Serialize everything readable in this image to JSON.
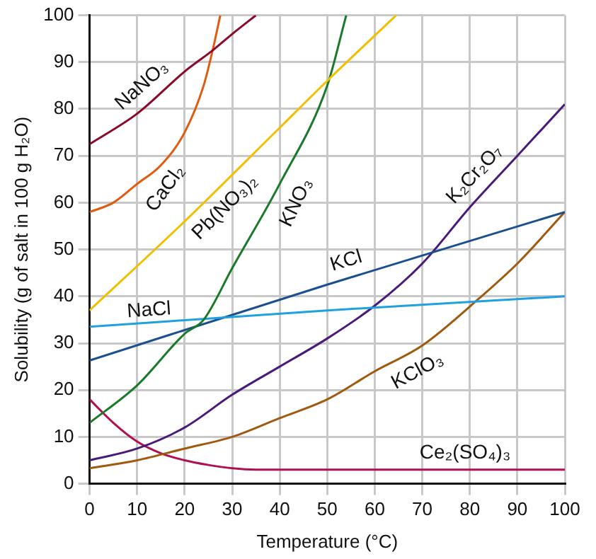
{
  "chart_data": {
    "type": "line",
    "xlabel": "Temperature (°C)",
    "ylabel": "Solubility (g of salt in 100 g H₂O)",
    "xlim": [
      0,
      100
    ],
    "ylim": [
      0,
      100
    ],
    "xticks": [
      0,
      10,
      20,
      30,
      40,
      50,
      60,
      70,
      80,
      90,
      100
    ],
    "yticks": [
      0,
      10,
      20,
      30,
      40,
      50,
      60,
      70,
      80,
      90,
      100
    ],
    "grid": true,
    "legend": false,
    "marker": "none",
    "line_style": "solid",
    "series": [
      {
        "name": "NaNO₃",
        "color": "#8b0a2a",
        "x": [
          0,
          10,
          20,
          26,
          30,
          35
        ],
        "values": [
          72.5,
          79,
          88,
          92.6,
          96,
          100
        ]
      },
      {
        "name": "CaCl₂",
        "color": "#e05a10",
        "x": [
          0,
          5,
          10,
          15,
          20,
          24,
          26,
          27.5
        ],
        "values": [
          58,
          60,
          64,
          68,
          75,
          85,
          93,
          100
        ]
      },
      {
        "name": "Pb(NO₃)₂",
        "color": "#f0c000",
        "x": [
          0,
          20,
          40,
          50,
          64.5
        ],
        "values": [
          37,
          56,
          76,
          86,
          100
        ]
      },
      {
        "name": "KNO₃",
        "color": "#1a7a2a",
        "x": [
          0,
          10,
          20,
          24,
          30,
          40,
          50,
          54
        ],
        "values": [
          13,
          21,
          32,
          35,
          46,
          64,
          85,
          100
        ]
      },
      {
        "name": "NaCl",
        "color": "#20a0e0",
        "x": [
          0,
          50,
          100
        ],
        "values": [
          33.5,
          37,
          40
        ]
      },
      {
        "name": "KCl",
        "color": "#1a4f90",
        "x": [
          0,
          50,
          100
        ],
        "values": [
          26.3,
          42.5,
          58
        ]
      },
      {
        "name": "K₂Cr₂O₇",
        "color": "#4a1a7a",
        "x": [
          0,
          10,
          20,
          30,
          40,
          50,
          60,
          70,
          80,
          90,
          100
        ],
        "values": [
          5,
          7.5,
          12,
          19,
          25,
          31,
          38,
          47,
          59,
          70,
          81
        ]
      },
      {
        "name": "KClO₃",
        "color": "#a05a10",
        "x": [
          0,
          10,
          20,
          30,
          40,
          50,
          60,
          70,
          82,
          90,
          100
        ],
        "values": [
          3.3,
          5,
          7.5,
          10,
          14,
          18,
          24,
          29.5,
          39.6,
          47,
          58
        ]
      },
      {
        "name": "Ce₂(SO₄)₃",
        "color": "#b01050",
        "x": [
          0,
          5,
          10,
          15,
          20,
          25,
          30,
          35,
          100
        ],
        "values": [
          18,
          13,
          9,
          6.5,
          5,
          4,
          3.3,
          3,
          3
        ]
      }
    ]
  }
}
